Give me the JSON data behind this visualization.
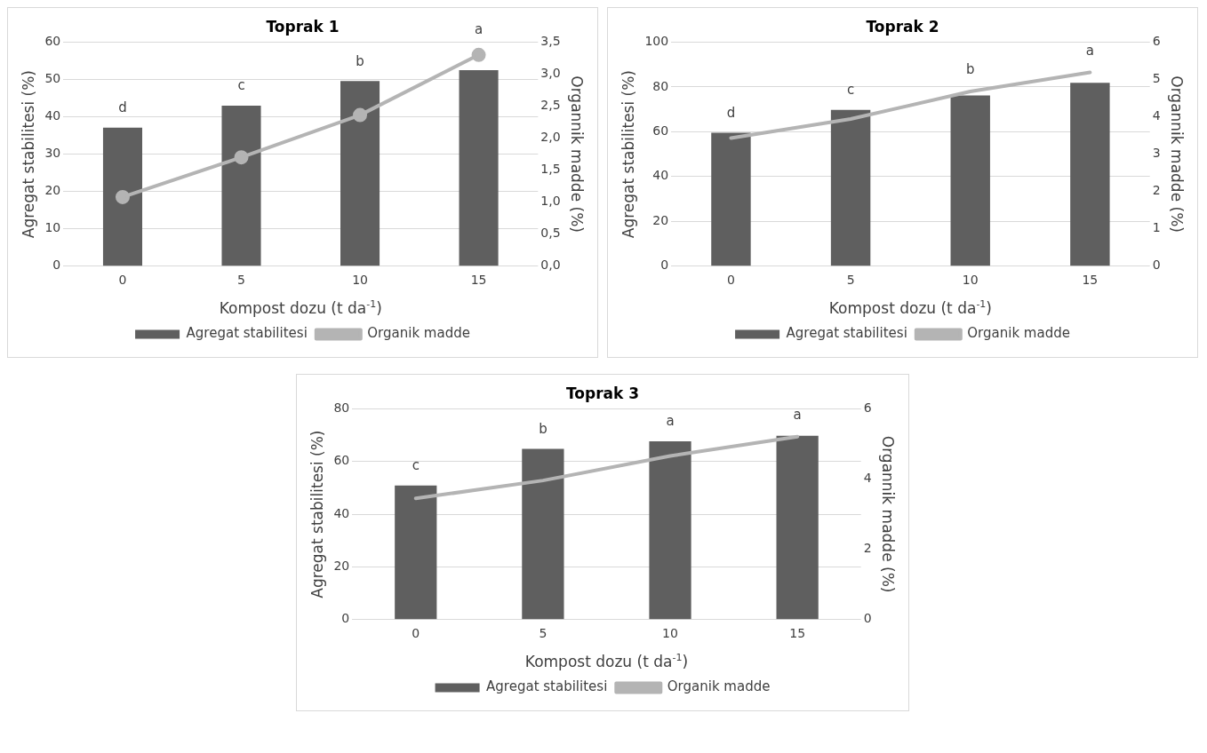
{
  "chart_data": [
    {
      "type": "bar",
      "title": "Toprak 1",
      "xlabel": "Kompost dozu (t da$^{-1}$)",
      "ylabel": "Agregat stabilitesi (%)",
      "y2label": "Organnik madde (%)",
      "categories": [
        "0",
        "5",
        "10",
        "15"
      ],
      "series": [
        {
          "name": "Agregat stabilitesi",
          "color": "#5f5f5f",
          "values": [
            37.1,
            43,
            49.6,
            52.5
          ]
        },
        {
          "name": "Organik madde",
          "type": "line",
          "axis": "y2",
          "color": "#b4b4b4",
          "values": [
            1.08,
            1.7,
            2.36,
            3.3
          ]
        }
      ],
      "ylim": [
        0,
        60
      ],
      "yticks": [
        0,
        10,
        20,
        30,
        40,
        50,
        60
      ],
      "y2lim": [
        0,
        3.5
      ],
      "y2ticks": [
        {
          "value": 0,
          "label": "0,0"
        },
        {
          "value": 0.5,
          "label": "0,5"
        },
        {
          "value": 1,
          "label": "1,0"
        },
        {
          "value": 1.5,
          "label": "1,5"
        },
        {
          "value": 2,
          "label": "2,0"
        },
        {
          "value": 2.5,
          "label": "2,5"
        },
        {
          "value": 3,
          "label": "3,0"
        },
        {
          "value": 3.5,
          "label": "3,5"
        }
      ],
      "annotations": [
        "d",
        "c",
        "b",
        "a"
      ],
      "grid": "y",
      "legend": "bottom",
      "marker": "circle"
    },
    {
      "type": "bar",
      "title": "Toprak 2",
      "xlabel": "Kompost dozu (t da$^{-1}$)",
      "ylabel": "Agregat stabilitesi (%)",
      "y2label": "Organnik madde (%)",
      "categories": [
        "0",
        "5",
        "10",
        "15"
      ],
      "series": [
        {
          "name": "Agregat stabilitesi",
          "color": "#5f5f5f",
          "values": [
            59.5,
            69.8,
            76.2,
            81.8
          ]
        },
        {
          "name": "Organik madde",
          "type": "line",
          "axis": "y2",
          "color": "#b4b4b4",
          "values": [
            3.43,
            3.94,
            4.68,
            5.19
          ]
        }
      ],
      "ylim": [
        0,
        100
      ],
      "yticks": [
        0,
        20,
        40,
        60,
        80,
        100
      ],
      "y2lim": [
        0,
        6
      ],
      "y2ticks": [
        0,
        1,
        2,
        3,
        4,
        5,
        6
      ],
      "annotations": [
        "d",
        "c",
        "b",
        "a"
      ],
      "grid": "y",
      "legend": "bottom"
    },
    {
      "type": "bar",
      "title": "Toprak 3",
      "xlabel": "Kompost dozu (t da$^{-1}$)",
      "ylabel": "Agregat stabilitesi (%)",
      "y2label": "Organnik madde (%)",
      "categories": [
        "0",
        "5",
        "10",
        "15"
      ],
      "series": [
        {
          "name": "Agregat stabilitesi",
          "color": "#5f5f5f",
          "values": [
            50.9,
            64.8,
            67.7,
            69.8
          ]
        },
        {
          "name": "Organik madde",
          "type": "line",
          "axis": "y2",
          "color": "#b4b4b4",
          "values": [
            3.45,
            3.96,
            4.66,
            5.21
          ]
        }
      ],
      "ylim": [
        0,
        80
      ],
      "yticks": [
        0,
        20,
        40,
        60,
        80
      ],
      "y2lim": [
        0,
        6
      ],
      "y2ticks": [
        0,
        2,
        4,
        6
      ],
      "annotations": [
        "c",
        "b",
        "a",
        "a"
      ],
      "grid": "y",
      "legend": "bottom"
    }
  ]
}
